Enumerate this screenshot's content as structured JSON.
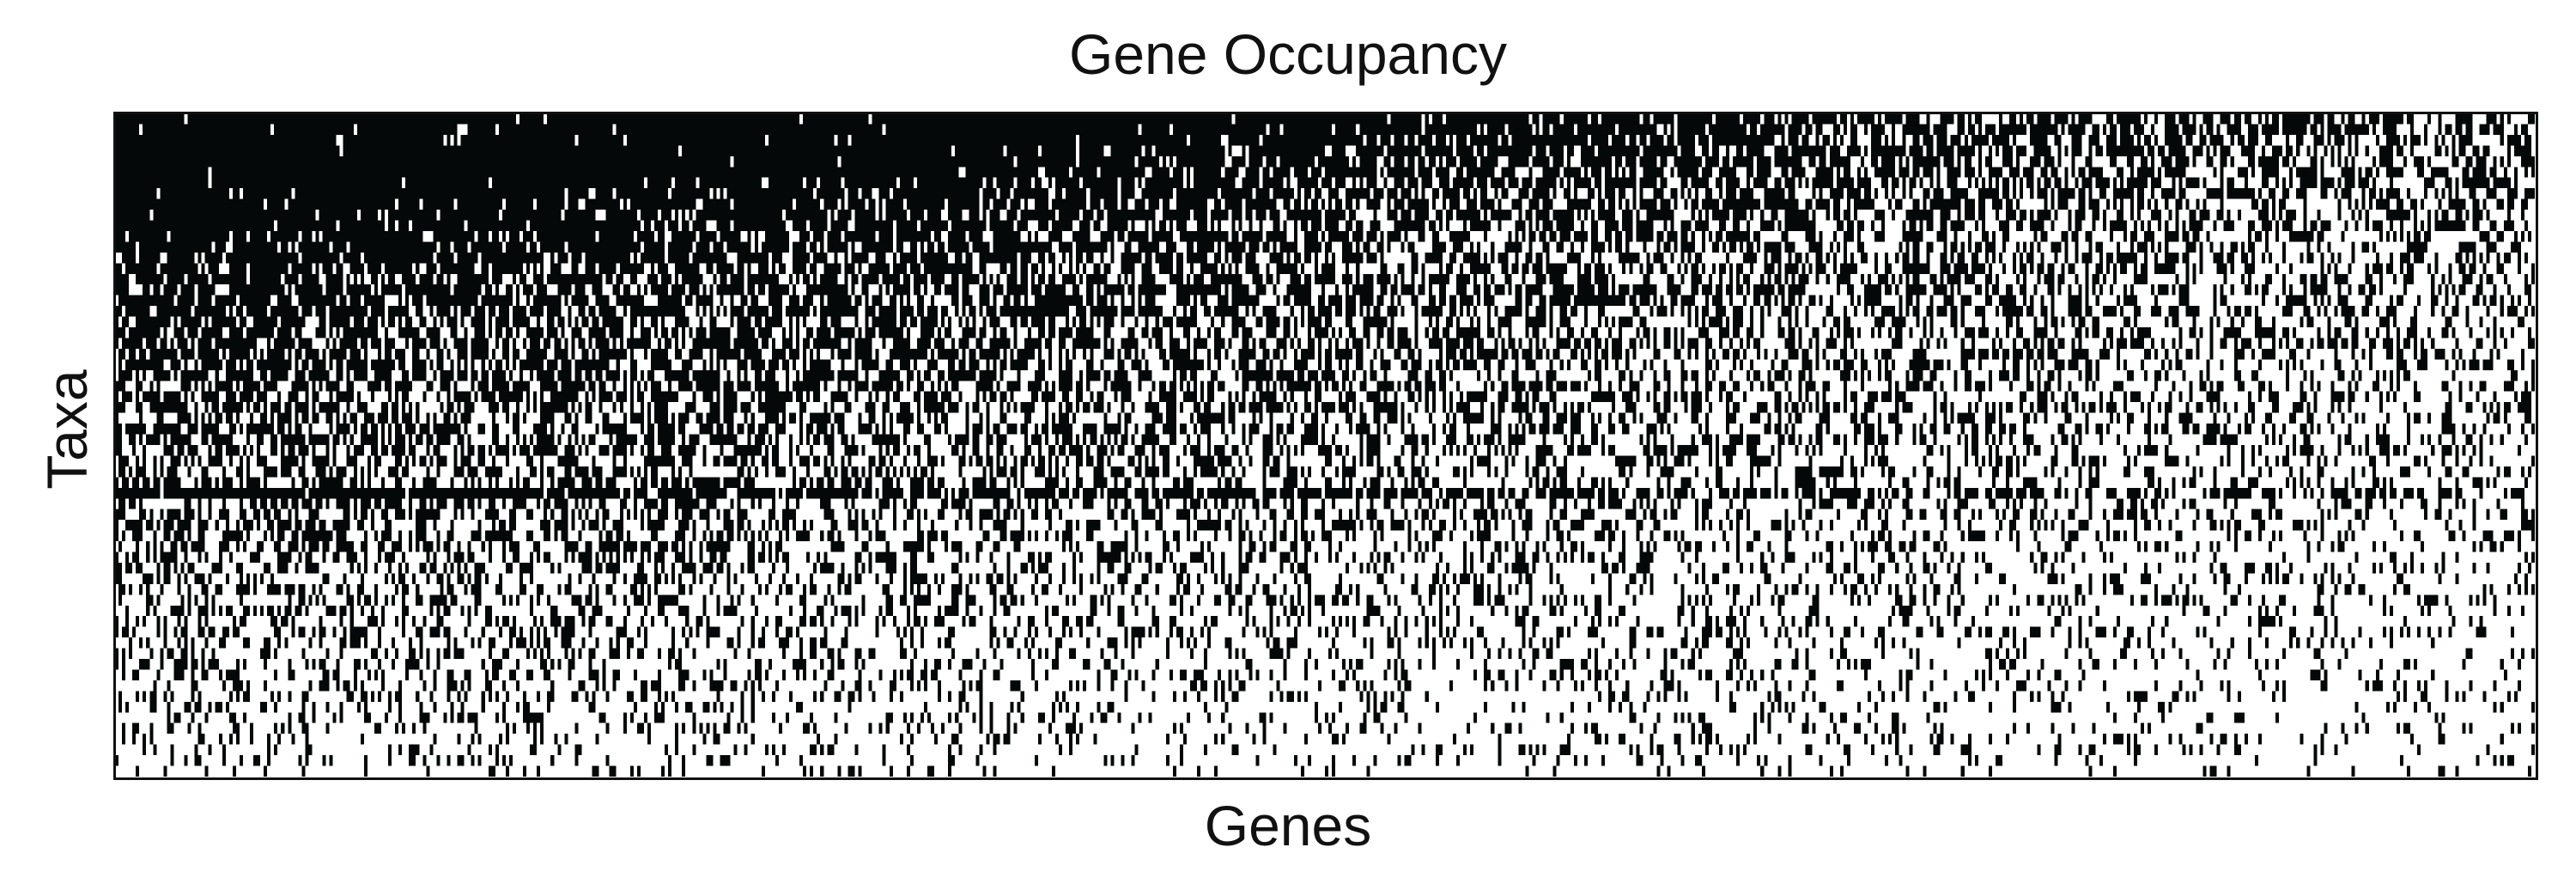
{
  "chart_data": {
    "type": "heatmap",
    "title": "Gene Occupancy",
    "xlabel": "Genes",
    "ylabel": "Taxa",
    "grid": false,
    "legend": "none",
    "x_ticks": [],
    "y_ticks": [],
    "colors": {
      "present": "#050808",
      "absent": "#ffffff"
    },
    "n_taxa": 62,
    "n_genes": 700,
    "row_occupancy": [
      0.96,
      0.9,
      0.86,
      0.84,
      0.82,
      0.8,
      0.78,
      0.74,
      0.72,
      0.7,
      0.68,
      0.66,
      0.64,
      0.63,
      0.62,
      0.6,
      0.59,
      0.58,
      0.57,
      0.55,
      0.54,
      0.53,
      0.52,
      0.51,
      0.5,
      0.49,
      0.48,
      0.47,
      0.46,
      0.45,
      0.44,
      0.43,
      0.42,
      0.41,
      0.4,
      0.72,
      0.38,
      0.37,
      0.36,
      0.35,
      0.34,
      0.33,
      0.32,
      0.31,
      0.3,
      0.29,
      0.28,
      0.27,
      0.26,
      0.25,
      0.24,
      0.23,
      0.22,
      0.21,
      0.2,
      0.19,
      0.18,
      0.17,
      0.16,
      0.15,
      0.14,
      0.12
    ],
    "gene_occupancy_trend": [
      0.72,
      0.3
    ]
  }
}
